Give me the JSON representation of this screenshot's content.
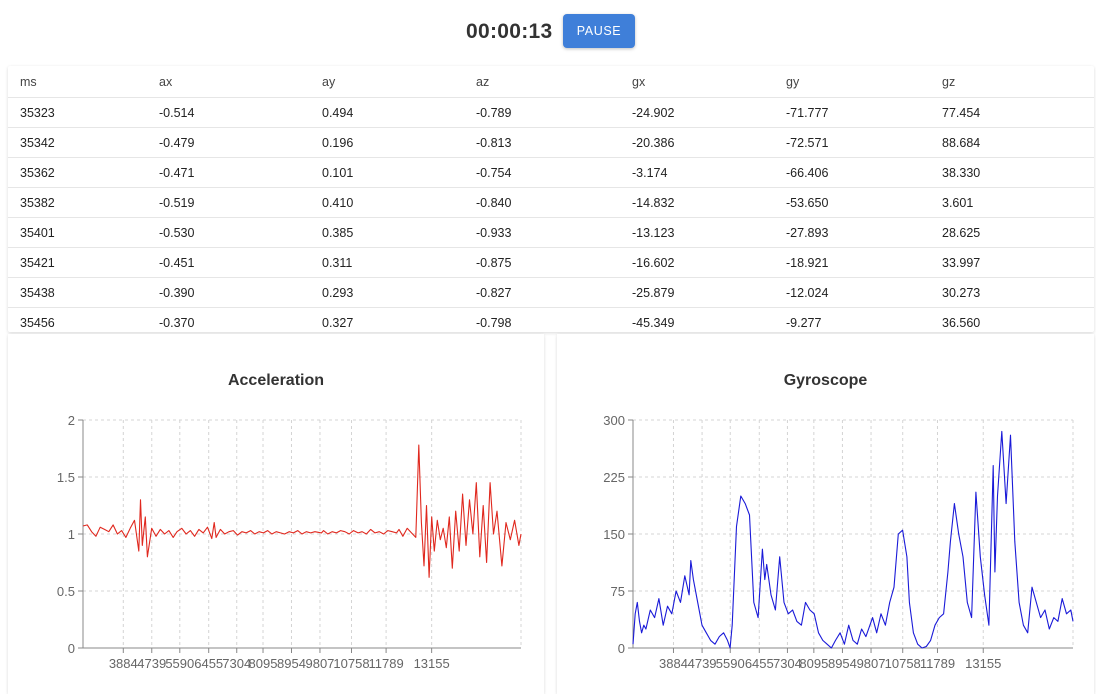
{
  "header": {
    "timer": "00:00:13",
    "pause_label": "PAUSE",
    "accent_color": "#3f7fd9"
  },
  "table": {
    "columns": [
      "ms",
      "ax",
      "ay",
      "az",
      "gx",
      "gy",
      "gz"
    ],
    "rows": [
      [
        "35323",
        "-0.514",
        "0.494",
        "-0.789",
        "-24.902",
        "-71.777",
        "77.454"
      ],
      [
        "35342",
        "-0.479",
        "0.196",
        "-0.813",
        "-20.386",
        "-72.571",
        "88.684"
      ],
      [
        "35362",
        "-0.471",
        "0.101",
        "-0.754",
        "-3.174",
        "-66.406",
        "38.330"
      ],
      [
        "35382",
        "-0.519",
        "0.410",
        "-0.840",
        "-14.832",
        "-53.650",
        "3.601"
      ],
      [
        "35401",
        "-0.530",
        "0.385",
        "-0.933",
        "-13.123",
        "-27.893",
        "28.625"
      ],
      [
        "35421",
        "-0.451",
        "0.311",
        "-0.875",
        "-16.602",
        "-18.921",
        "33.997"
      ],
      [
        "35438",
        "-0.390",
        "0.293",
        "-0.827",
        "-25.879",
        "-12.024",
        "30.273"
      ],
      [
        "35456",
        "-0.370",
        "0.327",
        "-0.798",
        "-45.349",
        "-9.277",
        "36.560"
      ]
    ]
  },
  "chart_data": [
    {
      "type": "line",
      "title": "Acceleration",
      "color": "#e0281e",
      "grid": true,
      "xlabel": "",
      "ylabel": "",
      "ylim": [
        0,
        2
      ],
      "yticks": [
        "0",
        "0.5",
        "1",
        "1.5",
        "2"
      ],
      "xticks": [
        "3884",
        "4739",
        "5590",
        "6455",
        "7304",
        "8095",
        "8954",
        "9807",
        "10758",
        "11789",
        "13155"
      ],
      "xlim": [
        3400,
        13600
      ],
      "series": [
        {
          "x": [
            3400,
            3500,
            3600,
            3700,
            3800,
            3900,
            4000,
            4100,
            4200,
            4300,
            4400,
            4500,
            4600,
            4700,
            4739,
            4780,
            4850,
            4900,
            5000,
            5100,
            5200,
            5300,
            5400,
            5500,
            5590,
            5700,
            5800,
            5900,
            6000,
            6100,
            6200,
            6300,
            6400,
            6455,
            6500,
            6600,
            6700,
            6800,
            6900,
            7000,
            7100,
            7200,
            7304,
            7400,
            7500,
            7600,
            7700,
            7800,
            7900,
            8000,
            8095,
            8200,
            8300,
            8400,
            8500,
            8600,
            8700,
            8800,
            8954,
            9000,
            9100,
            9200,
            9300,
            9400,
            9500,
            9600,
            9700,
            9807,
            9900,
            10000,
            10100,
            10200,
            10300,
            10400,
            10500,
            10600,
            10700,
            10758,
            10850,
            10950,
            11050,
            11150,
            11220,
            11280,
            11340,
            11400,
            11460,
            11520,
            11580,
            11650,
            11720,
            11789,
            11860,
            11930,
            12000,
            12080,
            12160,
            12240,
            12320,
            12400,
            12480,
            12560,
            12640,
            12720,
            12800,
            12880,
            12960,
            13040,
            13155,
            13250,
            13350,
            13450,
            13550,
            13600
          ],
          "values": [
            1.07,
            1.08,
            1.02,
            0.98,
            1.06,
            1.04,
            1.02,
            1.08,
            1.0,
            1.03,
            0.97,
            1.05,
            1.12,
            0.85,
            1.3,
            0.9,
            1.15,
            0.8,
            1.05,
            0.98,
            1.04,
            1.0,
            1.03,
            0.97,
            1.02,
            1.05,
            1.0,
            1.03,
            0.98,
            1.04,
            1.01,
            1.06,
            0.96,
            1.1,
            0.97,
            1.04,
            1.0,
            1.02,
            1.03,
            0.99,
            1.02,
            1.01,
            1.03,
            1.0,
            1.02,
            1.01,
            1.03,
            1.0,
            1.02,
            1.01,
            1.0,
            1.02,
            1.01,
            1.03,
            1.0,
            1.02,
            1.01,
            1.02,
            1.01,
            1.03,
            1.0,
            1.02,
            1.01,
            1.03,
            1.02,
            1.0,
            1.03,
            1.01,
            1.02,
            1.0,
            1.04,
            1.01,
            1.02,
            1.0,
            1.03,
            1.02,
            1.01,
            1.04,
            0.98,
            1.05,
            1.01,
            0.97,
            1.78,
            1.1,
            0.72,
            1.25,
            0.62,
            1.15,
            0.85,
            1.12,
            0.95,
            1.05,
            0.88,
            1.15,
            0.7,
            1.2,
            0.85,
            1.35,
            0.9,
            1.3,
            1.0,
            1.45,
            0.8,
            1.25,
            0.75,
            1.45,
            1.0,
            1.2,
            0.72,
            1.1,
            0.95,
            1.12,
            0.9,
            1.0
          ]
        }
      ]
    },
    {
      "type": "line",
      "title": "Gyroscope",
      "color": "#1a1ad8",
      "grid": true,
      "xlabel": "",
      "ylabel": "",
      "ylim": [
        0,
        300
      ],
      "yticks": [
        "0",
        "75",
        "150",
        "225",
        "300"
      ],
      "xticks": [
        "3884",
        "4739",
        "5590",
        "6455",
        "7304",
        "8095",
        "8954",
        "9807",
        "10758",
        "11789",
        "13155"
      ],
      "xlim": [
        3400,
        13600
      ],
      "series": [
        {
          "x": [
            3400,
            3450,
            3500,
            3550,
            3600,
            3650,
            3700,
            3800,
            3900,
            4000,
            4100,
            4200,
            4300,
            4400,
            4500,
            4600,
            4700,
            4739,
            4800,
            4900,
            5000,
            5100,
            5200,
            5300,
            5400,
            5500,
            5590,
            5650,
            5700,
            5800,
            5900,
            6000,
            6100,
            6200,
            6300,
            6400,
            6455,
            6500,
            6600,
            6700,
            6800,
            6900,
            7000,
            7100,
            7200,
            7304,
            7400,
            7500,
            7600,
            7700,
            7800,
            7900,
            8000,
            8095,
            8200,
            8300,
            8400,
            8500,
            8600,
            8700,
            8800,
            8954,
            9050,
            9150,
            9250,
            9350,
            9450,
            9550,
            9650,
            9750,
            9807,
            9900,
            10000,
            10100,
            10200,
            10300,
            10400,
            10500,
            10600,
            10700,
            10758,
            10850,
            10950,
            11050,
            11150,
            11250,
            11350,
            11450,
            11550,
            11650,
            11750,
            11789,
            11850,
            11950,
            12050,
            12150,
            12250,
            12350,
            12450,
            12550,
            12650,
            12750,
            12850,
            12950,
            13050,
            13155,
            13250,
            13350,
            13450,
            13550,
            13600
          ],
          "values": [
            5,
            45,
            60,
            35,
            20,
            30,
            25,
            50,
            40,
            65,
            30,
            55,
            45,
            75,
            60,
            95,
            70,
            115,
            90,
            60,
            30,
            20,
            10,
            5,
            15,
            20,
            10,
            0,
            30,
            160,
            200,
            190,
            175,
            60,
            40,
            130,
            90,
            110,
            70,
            50,
            120,
            60,
            45,
            50,
            35,
            30,
            60,
            50,
            45,
            20,
            10,
            5,
            0,
            10,
            20,
            5,
            30,
            10,
            5,
            25,
            15,
            40,
            20,
            45,
            30,
            60,
            80,
            150,
            155,
            120,
            60,
            20,
            5,
            0,
            2,
            10,
            30,
            40,
            45,
            100,
            140,
            190,
            150,
            120,
            60,
            40,
            205,
            120,
            70,
            30,
            240,
            100,
            200,
            285,
            190,
            280,
            140,
            60,
            30,
            20,
            80,
            60,
            40,
            50,
            25,
            40,
            35,
            65,
            45,
            50,
            35
          ]
        }
      ]
    }
  ]
}
